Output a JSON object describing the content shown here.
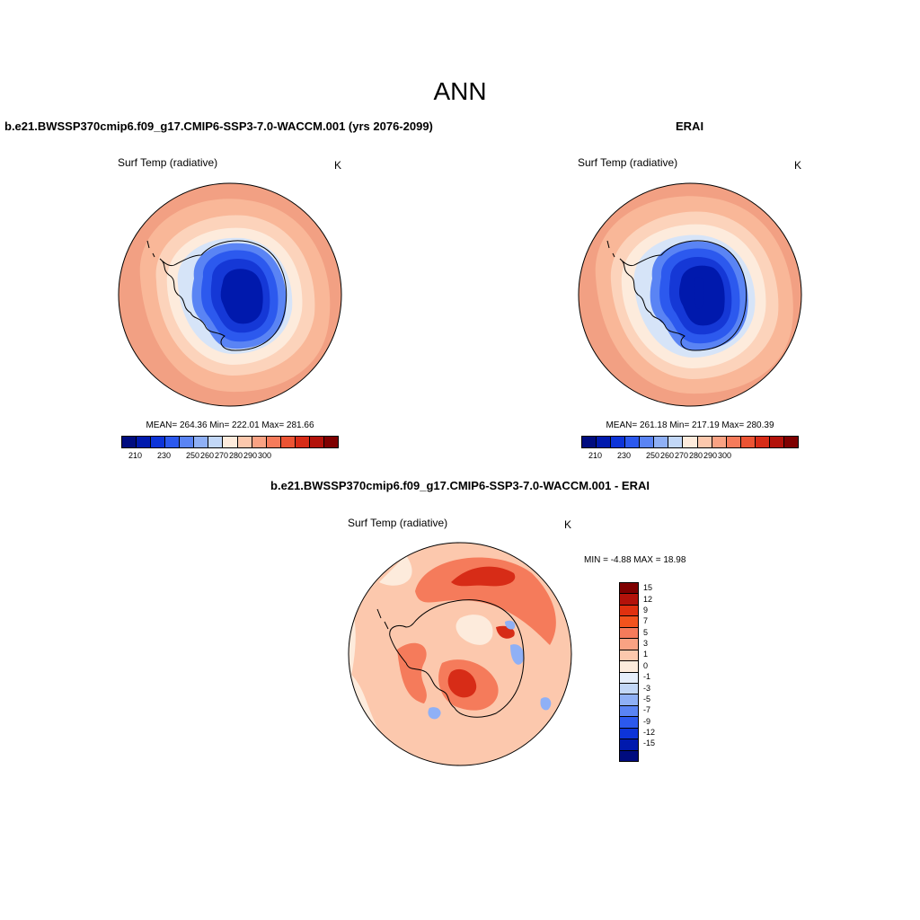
{
  "figure": {
    "title": "ANN"
  },
  "panels": {
    "model": {
      "title": "b.e21.BWSSP370cmip6.f09_g17.CMIP6-SSP3-7.0-WACCM.001 (yrs 2076-2099)",
      "variable": "Surf Temp (radiative)",
      "units": "K",
      "stats": "MEAN= 264.36  Min= 222.01  Max= 281.66",
      "mean": 264.36,
      "min": 222.01,
      "max": 281.66
    },
    "obs": {
      "title": "ERAI",
      "variable": "Surf Temp (radiative)",
      "units": "K",
      "stats": "MEAN= 261.18  Min= 217.19  Max= 280.39",
      "mean": 261.18,
      "min": 217.19,
      "max": 280.39
    },
    "diff": {
      "title": "b.e21.BWSSP370cmip6.f09_g17.CMIP6-SSP3-7.0-WACCM.001 - ERAI",
      "variable": "Surf Temp (radiative)",
      "units": "K",
      "stats": "MIN =  -4.88 MAX =  18.98",
      "min": -4.88,
      "max": 18.98
    }
  },
  "colorbars": {
    "absolute": {
      "tick_labels": [
        "210",
        "230",
        "250",
        "260",
        "270",
        "280",
        "290",
        "300"
      ],
      "colors": [
        "#000c7f",
        "#0019ad",
        "#0d34d8",
        "#2c59ee",
        "#5a84f4",
        "#8fb0f6",
        "#c2d7f7",
        "#fdebdc",
        "#fcc8ad",
        "#f9a283",
        "#f57b5b",
        "#ec5434",
        "#d72c17",
        "#b3120a",
        "#7f0000"
      ]
    },
    "difference": {
      "tick_labels": [
        "15",
        "12",
        "9",
        "7",
        "5",
        "3",
        "1",
        "0",
        "-1",
        "-3",
        "-5",
        "-7",
        "-9",
        "-12",
        "-15"
      ],
      "colors": [
        "#7f0000",
        "#b3120a",
        "#e0310f",
        "#f2531d",
        "#f57b5b",
        "#f9a283",
        "#fcc8ad",
        "#fdebdc",
        "#e6eefb",
        "#c2d7f7",
        "#8fb0f6",
        "#5a84f4",
        "#2c59ee",
        "#0d34d8",
        "#0019ad",
        "#000c7f"
      ]
    }
  },
  "field_colors": {
    "ocean_far": "#f2a083",
    "ocean_mid": "#f9b798",
    "ocean_near": "#fcd3bb",
    "sea_ice": "#fdebdc",
    "ice_edge": "#d6e4f8",
    "ice_slope": "#5a84f4",
    "ice_mid": "#2c59ee",
    "ice_high": "#1538d6",
    "ice_top": "#0019ad",
    "diff_base": "#fcc8ad",
    "diff_light": "#fdebdc",
    "diff_warm": "#f57b5b",
    "diff_hot": "#d72c17",
    "diff_cold": "#8fb0f6"
  }
}
